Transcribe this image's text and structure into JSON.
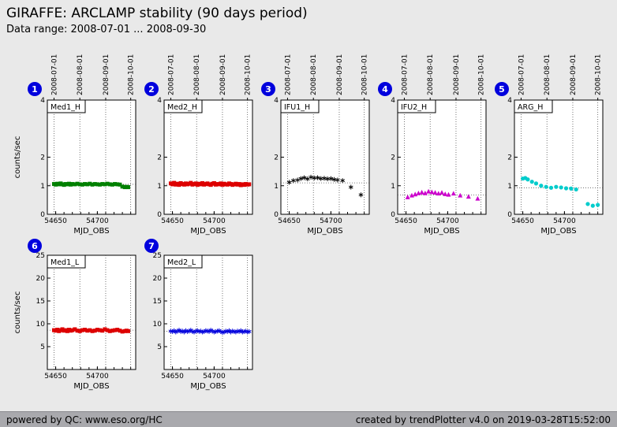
{
  "header": {
    "title": "GIRAFFE: ARCLAMP stability (90 days period)",
    "subtitle": "Data range: 2008-07-01 ... 2008-09-30"
  },
  "footer": {
    "left": "powered by QC: www.eso.org/HC",
    "right": "created by trendPlotter v4.0 on 2019-03-28T15:52:00"
  },
  "colors": {
    "badge": "#0000dd",
    "badge_text": "#ffffff",
    "plot_bg": "#ffffff",
    "axis": "#000000",
    "grid": "#555555"
  },
  "chart_data": {
    "type": "scatter",
    "xlabel": "MJD_OBS",
    "ylabel": "counts/sec",
    "xlim": [
      54640,
      54746
    ],
    "xticks": [
      54650,
      54700
    ],
    "date_axis": {
      "mjds": [
        54648,
        54679,
        54710,
        54740
      ],
      "labels": [
        "2008-07-01",
        "2008-08-01",
        "2008-09-01",
        "2008-10-01"
      ]
    },
    "rows": [
      {
        "ylim": [
          0,
          4
        ],
        "yticks": [
          0,
          1,
          2,
          4
        ],
        "plots": [
          {
            "badge": "1",
            "label": "Med1_H",
            "marker": "square",
            "color": "#008000",
            "hlines": [
              1.05
            ],
            "points": [
              [
                54648,
                1.06
              ],
              [
                54650,
                1.04
              ],
              [
                54652,
                1.07
              ],
              [
                54654,
                1.05
              ],
              [
                54656,
                1.08
              ],
              [
                54658,
                1.05
              ],
              [
                54660,
                1.03
              ],
              [
                54662,
                1.06
              ],
              [
                54664,
                1.05
              ],
              [
                54666,
                1.07
              ],
              [
                54668,
                1.04
              ],
              [
                54670,
                1.06
              ],
              [
                54673,
                1.05
              ],
              [
                54676,
                1.07
              ],
              [
                54679,
                1.05
              ],
              [
                54682,
                1.04
              ],
              [
                54685,
                1.06
              ],
              [
                54688,
                1.05
              ],
              [
                54691,
                1.07
              ],
              [
                54694,
                1.04
              ],
              [
                54697,
                1.06
              ],
              [
                54700,
                1.05
              ],
              [
                54703,
                1.04
              ],
              [
                54706,
                1.06
              ],
              [
                54709,
                1.05
              ],
              [
                54712,
                1.07
              ],
              [
                54715,
                1.05
              ],
              [
                54718,
                1.04
              ],
              [
                54721,
                1.06
              ],
              [
                54724,
                1.05
              ],
              [
                54727,
                1.04
              ],
              [
                54730,
                0.97
              ],
              [
                54733,
                0.95
              ],
              [
                54735,
                0.96
              ],
              [
                54737,
                0.95
              ]
            ]
          },
          {
            "badge": "2",
            "label": "Med2_H",
            "marker": "square",
            "color": "#dd0000",
            "hlines": [
              1.05
            ],
            "points": [
              [
                54648,
                1.08
              ],
              [
                54650,
                1.05
              ],
              [
                54652,
                1.1
              ],
              [
                54654,
                1.04
              ],
              [
                54656,
                1.07
              ],
              [
                54658,
                1.03
              ],
              [
                54660,
                1.09
              ],
              [
                54662,
                1.06
              ],
              [
                54664,
                1.04
              ],
              [
                54666,
                1.08
              ],
              [
                54668,
                1.05
              ],
              [
                54670,
                1.07
              ],
              [
                54672,
                1.1
              ],
              [
                54674,
                1.04
              ],
              [
                54676,
                1.06
              ],
              [
                54678,
                1.08
              ],
              [
                54680,
                1.03
              ],
              [
                54682,
                1.07
              ],
              [
                54684,
                1.05
              ],
              [
                54686,
                1.09
              ],
              [
                54688,
                1.04
              ],
              [
                54690,
                1.06
              ],
              [
                54692,
                1.08
              ],
              [
                54694,
                1.05
              ],
              [
                54696,
                1.03
              ],
              [
                54698,
                1.07
              ],
              [
                54700,
                1.09
              ],
              [
                54702,
                1.04
              ],
              [
                54704,
                1.06
              ],
              [
                54706,
                1.05
              ],
              [
                54708,
                1.08
              ],
              [
                54710,
                1.03
              ],
              [
                54712,
                1.07
              ],
              [
                54714,
                1.05
              ],
              [
                54716,
                1.04
              ],
              [
                54718,
                1.08
              ],
              [
                54720,
                1.06
              ],
              [
                54722,
                1.03
              ],
              [
                54724,
                1.05
              ],
              [
                54726,
                1.07
              ],
              [
                54728,
                1.04
              ],
              [
                54730,
                1.06
              ],
              [
                54732,
                1.02
              ],
              [
                54734,
                1.05
              ],
              [
                54736,
                1.03
              ],
              [
                54738,
                1.06
              ],
              [
                54740,
                1.04
              ],
              [
                54742,
                1.05
              ]
            ]
          },
          {
            "badge": "3",
            "label": "IFU1_H",
            "marker": "star",
            "color": "#000000",
            "hlines": [
              1.1
            ],
            "points": [
              [
                54650,
                1.12
              ],
              [
                54655,
                1.18
              ],
              [
                54660,
                1.2
              ],
              [
                54664,
                1.25
              ],
              [
                54668,
                1.28
              ],
              [
                54672,
                1.24
              ],
              [
                54676,
                1.3
              ],
              [
                54680,
                1.27
              ],
              [
                54684,
                1.28
              ],
              [
                54688,
                1.25
              ],
              [
                54692,
                1.26
              ],
              [
                54696,
                1.24
              ],
              [
                54700,
                1.25
              ],
              [
                54704,
                1.22
              ],
              [
                54708,
                1.2
              ],
              [
                54714,
                1.18
              ],
              [
                54724,
                0.95
              ],
              [
                54736,
                0.68
              ]
            ]
          },
          {
            "badge": "4",
            "label": "IFU2_H",
            "marker": "triangle",
            "color": "#cc00cc",
            "hlines": [
              0.68
            ],
            "points": [
              [
                54652,
                0.6
              ],
              [
                54657,
                0.66
              ],
              [
                54661,
                0.7
              ],
              [
                54665,
                0.74
              ],
              [
                54669,
                0.77
              ],
              [
                54673,
                0.74
              ],
              [
                54677,
                0.8
              ],
              [
                54681,
                0.78
              ],
              [
                54685,
                0.76
              ],
              [
                54689,
                0.73
              ],
              [
                54693,
                0.76
              ],
              [
                54697,
                0.71
              ],
              [
                54701,
                0.69
              ],
              [
                54707,
                0.73
              ],
              [
                54715,
                0.66
              ],
              [
                54725,
                0.62
              ],
              [
                54736,
                0.55
              ]
            ]
          },
          {
            "badge": "5",
            "label": "ARG_H",
            "marker": "circle",
            "color": "#00cccc",
            "hlines": [
              0.93
            ],
            "points": [
              [
                54650,
                1.25
              ],
              [
                54653,
                1.27
              ],
              [
                54656,
                1.22
              ],
              [
                54661,
                1.14
              ],
              [
                54666,
                1.08
              ],
              [
                54672,
                1.0
              ],
              [
                54678,
                0.96
              ],
              [
                54684,
                0.93
              ],
              [
                54690,
                0.96
              ],
              [
                54696,
                0.94
              ],
              [
                54702,
                0.91
              ],
              [
                54708,
                0.9
              ],
              [
                54714,
                0.87
              ],
              [
                54728,
                0.36
              ],
              [
                54734,
                0.3
              ],
              [
                54740,
                0.33
              ]
            ]
          }
        ]
      },
      {
        "ylim": [
          0,
          25
        ],
        "yticks": [
          5,
          10,
          15,
          20,
          25
        ],
        "plots": [
          {
            "badge": "6",
            "label": "Med1_L",
            "marker": "square",
            "color": "#dd0000",
            "hlines": [
              8.6
            ],
            "points": [
              [
                54648,
                8.6
              ],
              [
                54650,
                8.5
              ],
              [
                54652,
                8.7
              ],
              [
                54654,
                8.4
              ],
              [
                54656,
                8.6
              ],
              [
                54658,
                8.8
              ],
              [
                54660,
                8.5
              ],
              [
                54662,
                8.6
              ],
              [
                54664,
                8.4
              ],
              [
                54666,
                8.7
              ],
              [
                54668,
                8.5
              ],
              [
                54670,
                8.6
              ],
              [
                54673,
                8.8
              ],
              [
                54676,
                8.5
              ],
              [
                54679,
                8.4
              ],
              [
                54682,
                8.6
              ],
              [
                54685,
                8.7
              ],
              [
                54688,
                8.5
              ],
              [
                54691,
                8.6
              ],
              [
                54694,
                8.4
              ],
              [
                54697,
                8.5
              ],
              [
                54700,
                8.7
              ],
              [
                54703,
                8.6
              ],
              [
                54706,
                8.5
              ],
              [
                54709,
                8.8
              ],
              [
                54712,
                8.6
              ],
              [
                54715,
                8.4
              ],
              [
                54718,
                8.5
              ],
              [
                54721,
                8.6
              ],
              [
                54724,
                8.7
              ],
              [
                54727,
                8.5
              ],
              [
                54730,
                8.3
              ],
              [
                54733,
                8.4
              ],
              [
                54735,
                8.5
              ],
              [
                54737,
                8.4
              ]
            ]
          },
          {
            "badge": "7",
            "label": "Med2_L",
            "marker": "star",
            "color": "#0000dd",
            "hlines": [
              8.35
            ],
            "points": [
              [
                54648,
                8.4
              ],
              [
                54650,
                8.3
              ],
              [
                54652,
                8.5
              ],
              [
                54654,
                8.2
              ],
              [
                54656,
                8.4
              ],
              [
                54658,
                8.6
              ],
              [
                54660,
                8.3
              ],
              [
                54662,
                8.4
              ],
              [
                54664,
                8.2
              ],
              [
                54666,
                8.5
              ],
              [
                54668,
                8.3
              ],
              [
                54670,
                8.4
              ],
              [
                54672,
                8.6
              ],
              [
                54674,
                8.3
              ],
              [
                54676,
                8.2
              ],
              [
                54678,
                8.4
              ],
              [
                54680,
                8.5
              ],
              [
                54682,
                8.3
              ],
              [
                54684,
                8.4
              ],
              [
                54686,
                8.2
              ],
              [
                54688,
                8.3
              ],
              [
                54690,
                8.5
              ],
              [
                54692,
                8.4
              ],
              [
                54694,
                8.3
              ],
              [
                54696,
                8.6
              ],
              [
                54698,
                8.4
              ],
              [
                54700,
                8.2
              ],
              [
                54702,
                8.3
              ],
              [
                54704,
                8.4
              ],
              [
                54706,
                8.5
              ],
              [
                54708,
                8.3
              ],
              [
                54710,
                8.1
              ],
              [
                54712,
                8.2
              ],
              [
                54714,
                8.4
              ],
              [
                54716,
                8.3
              ],
              [
                54718,
                8.5
              ],
              [
                54720,
                8.2
              ],
              [
                54722,
                8.4
              ],
              [
                54724,
                8.3
              ],
              [
                54726,
                8.2
              ],
              [
                54728,
                8.4
              ],
              [
                54730,
                8.3
              ],
              [
                54732,
                8.5
              ],
              [
                54734,
                8.2
              ],
              [
                54736,
                8.3
              ],
              [
                54738,
                8.4
              ],
              [
                54740,
                8.2
              ],
              [
                54742,
                8.3
              ]
            ]
          }
        ]
      }
    ]
  }
}
